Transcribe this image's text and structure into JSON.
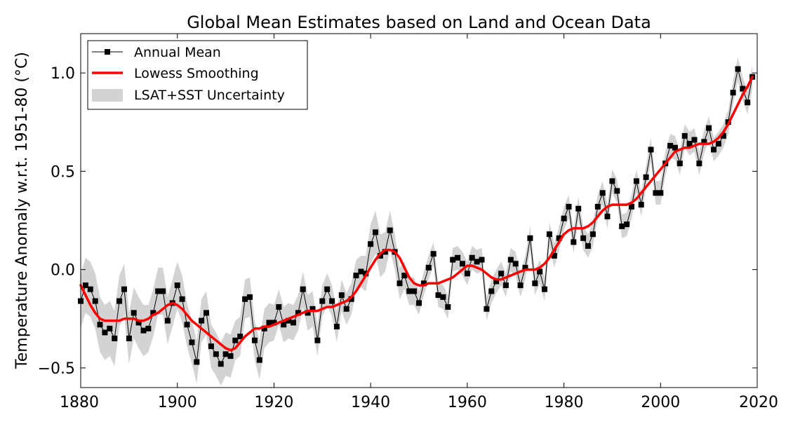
{
  "chart_data": {
    "type": "line",
    "title": "Global Mean Estimates based on Land and Ocean Data",
    "xlabel": "",
    "ylabel": "Temperature Anomaly w.r.t. 1951-80 (°C)",
    "xlim": [
      1880,
      2020
    ],
    "ylim": [
      -0.6,
      1.2
    ],
    "x_ticks": [
      1880,
      1900,
      1920,
      1940,
      1960,
      1980,
      2000,
      2020
    ],
    "y_ticks": [
      -0.5,
      0.0,
      0.5,
      1.0
    ],
    "y_tick_labels": [
      "−0.5",
      "0.0",
      "0.5",
      "1.0"
    ],
    "legend_position": "top-left",
    "grid": false,
    "colors": {
      "annual": "#000000",
      "smoothing": "#ff0000",
      "uncertainty": "#d3d3d3"
    },
    "legend": {
      "annual": "Annual Mean",
      "smoothing": "Lowess Smoothing",
      "uncertainty": "LSAT+SST Uncertainty"
    },
    "x": [
      1880,
      1881,
      1882,
      1883,
      1884,
      1885,
      1886,
      1887,
      1888,
      1889,
      1890,
      1891,
      1892,
      1893,
      1894,
      1895,
      1896,
      1897,
      1898,
      1899,
      1900,
      1901,
      1902,
      1903,
      1904,
      1905,
      1906,
      1907,
      1908,
      1909,
      1910,
      1911,
      1912,
      1913,
      1914,
      1915,
      1916,
      1917,
      1918,
      1919,
      1920,
      1921,
      1922,
      1923,
      1924,
      1925,
      1926,
      1927,
      1928,
      1929,
      1930,
      1931,
      1932,
      1933,
      1934,
      1935,
      1936,
      1937,
      1938,
      1939,
      1940,
      1941,
      1942,
      1943,
      1944,
      1945,
      1946,
      1947,
      1948,
      1949,
      1950,
      1951,
      1952,
      1953,
      1954,
      1955,
      1956,
      1957,
      1958,
      1959,
      1960,
      1961,
      1962,
      1963,
      1964,
      1965,
      1966,
      1967,
      1968,
      1969,
      1970,
      1971,
      1972,
      1973,
      1974,
      1975,
      1976,
      1977,
      1978,
      1979,
      1980,
      1981,
      1982,
      1983,
      1984,
      1985,
      1986,
      1987,
      1988,
      1989,
      1990,
      1991,
      1992,
      1993,
      1994,
      1995,
      1996,
      1997,
      1998,
      1999,
      2000,
      2001,
      2002,
      2003,
      2004,
      2005,
      2006,
      2007,
      2008,
      2009,
      2010,
      2011,
      2012,
      2013,
      2014,
      2015,
      2016,
      2017,
      2018,
      2019
    ],
    "series": [
      {
        "name": "Annual Mean",
        "values": [
          -0.16,
          -0.08,
          -0.1,
          -0.16,
          -0.28,
          -0.32,
          -0.3,
          -0.35,
          -0.16,
          -0.1,
          -0.35,
          -0.22,
          -0.27,
          -0.31,
          -0.3,
          -0.22,
          -0.11,
          -0.11,
          -0.26,
          -0.17,
          -0.08,
          -0.15,
          -0.28,
          -0.37,
          -0.47,
          -0.26,
          -0.22,
          -0.39,
          -0.43,
          -0.48,
          -0.43,
          -0.44,
          -0.36,
          -0.34,
          -0.15,
          -0.14,
          -0.36,
          -0.46,
          -0.3,
          -0.27,
          -0.27,
          -0.19,
          -0.28,
          -0.26,
          -0.27,
          -0.22,
          -0.1,
          -0.22,
          -0.2,
          -0.36,
          -0.16,
          -0.1,
          -0.16,
          -0.29,
          -0.13,
          -0.2,
          -0.15,
          -0.03,
          -0.01,
          -0.02,
          0.13,
          0.19,
          0.07,
          0.09,
          0.2,
          0.09,
          -0.07,
          -0.03,
          -0.11,
          -0.11,
          -0.17,
          -0.07,
          0.01,
          0.08,
          -0.13,
          -0.14,
          -0.19,
          0.05,
          0.06,
          0.03,
          -0.02,
          0.06,
          0.04,
          0.05,
          -0.2,
          -0.11,
          -0.06,
          -0.02,
          -0.08,
          0.05,
          0.03,
          -0.08,
          0.01,
          0.16,
          -0.07,
          -0.01,
          -0.1,
          0.18,
          0.07,
          0.16,
          0.26,
          0.32,
          0.14,
          0.31,
          0.16,
          0.12,
          0.18,
          0.32,
          0.39,
          0.27,
          0.45,
          0.4,
          0.22,
          0.23,
          0.32,
          0.45,
          0.33,
          0.47,
          0.61,
          0.39,
          0.39,
          0.54,
          0.63,
          0.62,
          0.54,
          0.68,
          0.64,
          0.66,
          0.54,
          0.65,
          0.72,
          0.61,
          0.64,
          0.68,
          0.75,
          0.9,
          1.02,
          0.92,
          0.85,
          0.98
        ],
        "marker": "square"
      },
      {
        "name": "Lowess Smoothing",
        "values": [
          -0.08,
          -0.13,
          -0.18,
          -0.22,
          -0.25,
          -0.26,
          -0.26,
          -0.26,
          -0.26,
          -0.25,
          -0.25,
          -0.25,
          -0.26,
          -0.26,
          -0.25,
          -0.23,
          -0.22,
          -0.2,
          -0.18,
          -0.17,
          -0.18,
          -0.2,
          -0.23,
          -0.26,
          -0.28,
          -0.3,
          -0.32,
          -0.34,
          -0.36,
          -0.38,
          -0.4,
          -0.41,
          -0.4,
          -0.37,
          -0.34,
          -0.32,
          -0.3,
          -0.3,
          -0.29,
          -0.29,
          -0.28,
          -0.27,
          -0.26,
          -0.25,
          -0.24,
          -0.23,
          -0.22,
          -0.21,
          -0.21,
          -0.21,
          -0.2,
          -0.19,
          -0.19,
          -0.18,
          -0.17,
          -0.16,
          -0.14,
          -0.11,
          -0.07,
          -0.03,
          0.01,
          0.05,
          0.08,
          0.1,
          0.1,
          0.09,
          0.06,
          0.01,
          -0.04,
          -0.07,
          -0.08,
          -0.08,
          -0.07,
          -0.07,
          -0.07,
          -0.06,
          -0.05,
          -0.04,
          -0.02,
          0.0,
          0.02,
          0.02,
          0.01,
          0.0,
          -0.02,
          -0.04,
          -0.05,
          -0.05,
          -0.04,
          -0.03,
          -0.02,
          -0.01,
          0.0,
          0.0,
          0.0,
          0.01,
          0.03,
          0.06,
          0.1,
          0.14,
          0.18,
          0.2,
          0.21,
          0.21,
          0.21,
          0.22,
          0.24,
          0.27,
          0.3,
          0.32,
          0.33,
          0.33,
          0.33,
          0.33,
          0.34,
          0.36,
          0.39,
          0.42,
          0.45,
          0.48,
          0.51,
          0.54,
          0.57,
          0.6,
          0.61,
          0.62,
          0.62,
          0.63,
          0.64,
          0.64,
          0.64,
          0.65,
          0.67,
          0.7,
          0.74,
          0.79,
          0.84,
          0.89,
          0.93,
          0.98
        ]
      }
    ],
    "uncertainty": {
      "name": "LSAT+SST Uncertainty",
      "half_width": [
        0.14,
        0.14,
        0.14,
        0.14,
        0.14,
        0.14,
        0.14,
        0.14,
        0.13,
        0.13,
        0.13,
        0.13,
        0.13,
        0.13,
        0.12,
        0.12,
        0.12,
        0.12,
        0.12,
        0.12,
        0.12,
        0.12,
        0.11,
        0.11,
        0.11,
        0.11,
        0.11,
        0.11,
        0.11,
        0.11,
        0.11,
        0.11,
        0.1,
        0.1,
        0.1,
        0.1,
        0.1,
        0.1,
        0.1,
        0.1,
        0.09,
        0.09,
        0.09,
        0.09,
        0.09,
        0.09,
        0.09,
        0.09,
        0.09,
        0.08,
        0.08,
        0.08,
        0.08,
        0.08,
        0.08,
        0.08,
        0.08,
        0.08,
        0.08,
        0.09,
        0.1,
        0.11,
        0.11,
        0.1,
        0.1,
        0.09,
        0.08,
        0.07,
        0.07,
        0.07,
        0.06,
        0.06,
        0.06,
        0.06,
        0.06,
        0.06,
        0.06,
        0.06,
        0.06,
        0.06,
        0.06,
        0.06,
        0.06,
        0.06,
        0.06,
        0.06,
        0.06,
        0.06,
        0.06,
        0.06,
        0.06,
        0.06,
        0.06,
        0.06,
        0.06,
        0.06,
        0.06,
        0.06,
        0.06,
        0.06,
        0.06,
        0.06,
        0.06,
        0.06,
        0.06,
        0.06,
        0.06,
        0.06,
        0.06,
        0.06,
        0.06,
        0.06,
        0.06,
        0.06,
        0.06,
        0.06,
        0.06,
        0.06,
        0.06,
        0.06,
        0.06,
        0.06,
        0.06,
        0.06,
        0.06,
        0.06,
        0.06,
        0.06,
        0.06,
        0.06,
        0.06,
        0.06,
        0.06,
        0.06,
        0.06,
        0.06,
        0.06,
        0.06,
        0.06,
        0.06
      ]
    }
  }
}
